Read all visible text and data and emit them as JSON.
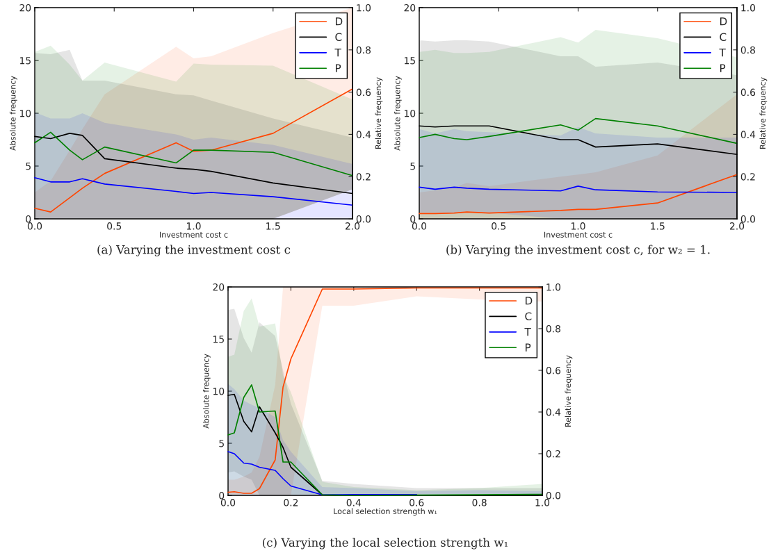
{
  "chart_data": [
    {
      "type": "line",
      "title": "(a) Varying the investment cost c",
      "xlabel": "Investment cost c",
      "ylabel": "Absolute frequency",
      "y2label": "Relative frequency",
      "x": [
        0,
        0.1,
        0.22,
        0.3,
        0.44,
        0.89,
        1.0,
        1.11,
        1.5,
        2.0
      ],
      "xlim": [
        0,
        2
      ],
      "xticks": [
        {
          "value": 0,
          "label": "0.0"
        },
        {
          "value": 0.5,
          "label": "0.5"
        },
        {
          "value": 1,
          "label": "1.0"
        },
        {
          "value": 1.5,
          "label": "1.5"
        },
        {
          "value": 2,
          "label": "2.0"
        }
      ],
      "ylim": [
        0,
        20
      ],
      "yticks": [
        0,
        5,
        10,
        15,
        20
      ],
      "y2lim": [
        0,
        1
      ],
      "y2ticks": [
        {
          "value": 0,
          "label": "0.0"
        },
        {
          "value": 0.2,
          "label": "0.2"
        },
        {
          "value": 0.4,
          "label": "0.4"
        },
        {
          "value": 0.6,
          "label": "0.6"
        },
        {
          "value": 0.8,
          "label": "0.8"
        },
        {
          "value": 1,
          "label": "1.0"
        }
      ],
      "legend": "top right",
      "grid": false,
      "series": [
        {
          "name": "D",
          "color": "#ff4500",
          "values": [
            1.0,
            0.65,
            2.0,
            2.9,
            4.3,
            7.2,
            6.4,
            6.5,
            8.1,
            12.3
          ],
          "lower": [
            0,
            0,
            0,
            0,
            0,
            0,
            0,
            0,
            0,
            2.8
          ],
          "upper": [
            2.5,
            3.6,
            6.5,
            8.5,
            11.8,
            16.3,
            15.2,
            15.4,
            17.6,
            20
          ]
        },
        {
          "name": "C",
          "color": "#000000",
          "values": [
            7.8,
            7.6,
            8.1,
            7.9,
            5.7,
            4.8,
            4.7,
            4.5,
            3.4,
            2.4
          ],
          "lower": [
            0,
            0,
            0,
            0,
            0,
            0,
            0,
            0,
            0,
            2.8
          ],
          "upper": [
            15.7,
            15.6,
            16.0,
            13.1,
            13.1,
            11.8,
            11.7,
            11.2,
            9.5,
            7.7
          ]
        },
        {
          "name": "T",
          "color": "#0000ff",
          "values": [
            3.9,
            3.5,
            3.5,
            3.8,
            3.3,
            2.6,
            2.4,
            2.5,
            2.1,
            1.3
          ],
          "lower": [
            0,
            0,
            0,
            0,
            0,
            0,
            0,
            0,
            0,
            0
          ],
          "upper": [
            10.1,
            9.5,
            9.5,
            10.0,
            9.1,
            8.0,
            7.5,
            7.7,
            7.0,
            5.2
          ]
        },
        {
          "name": "P",
          "color": "#008000",
          "values": [
            7.2,
            8.2,
            6.5,
            5.6,
            6.8,
            5.3,
            6.5,
            6.5,
            6.3,
            4.1
          ],
          "lower": [
            0,
            0,
            0,
            0,
            0,
            0,
            0,
            0,
            0,
            2.8
          ],
          "upper": [
            15.8,
            16.4,
            14.6,
            13.1,
            14.8,
            13.0,
            14.7,
            14.6,
            14.5,
            11.3
          ]
        }
      ]
    },
    {
      "type": "line",
      "title": "(b) Varying the investment cost c, for w₂ = 1.",
      "xlabel": "Investment cost c",
      "ylabel": "Absolute frequency",
      "y2label": "Relative frequency",
      "x": [
        0,
        0.1,
        0.22,
        0.3,
        0.44,
        0.89,
        1.0,
        1.11,
        1.5,
        2.0
      ],
      "xlim": [
        0,
        2
      ],
      "xticks": [
        {
          "value": 0,
          "label": "0.0"
        },
        {
          "value": 0.5,
          "label": "0.5"
        },
        {
          "value": 1,
          "label": "1.0"
        },
        {
          "value": 1.5,
          "label": "1.5"
        },
        {
          "value": 2,
          "label": "2.0"
        }
      ],
      "ylim": [
        0,
        20
      ],
      "yticks": [
        0,
        5,
        10,
        15,
        20
      ],
      "y2lim": [
        0,
        1
      ],
      "y2ticks": [
        {
          "value": 0,
          "label": "0.0"
        },
        {
          "value": 0.2,
          "label": "0.2"
        },
        {
          "value": 0.4,
          "label": "0.4"
        },
        {
          "value": 0.6,
          "label": "0.6"
        },
        {
          "value": 0.8,
          "label": "0.8"
        },
        {
          "value": 1,
          "label": "1.0"
        }
      ],
      "legend": "top right",
      "grid": false,
      "series": [
        {
          "name": "D",
          "color": "#ff4500",
          "values": [
            0.5,
            0.5,
            0.55,
            0.65,
            0.55,
            0.8,
            0.9,
            0.9,
            1.5,
            4.2
          ],
          "lower": [
            0,
            0,
            0,
            0,
            0,
            0,
            0,
            0,
            0,
            0
          ],
          "upper": [
            2.5,
            2.7,
            3.0,
            3.4,
            3.1,
            4.0,
            4.2,
            4.4,
            6.0,
            11.8
          ]
        },
        {
          "name": "C",
          "color": "#000000",
          "values": [
            8.8,
            8.7,
            8.8,
            8.8,
            8.8,
            7.5,
            7.5,
            6.8,
            7.1,
            6.1
          ],
          "lower": [
            0,
            0,
            0,
            0,
            0,
            0,
            0,
            0,
            0,
            0
          ],
          "upper": [
            16.9,
            16.8,
            16.9,
            16.9,
            16.8,
            15.4,
            15.4,
            14.4,
            14.8,
            13.6
          ]
        },
        {
          "name": "T",
          "color": "#0000ff",
          "values": [
            3.0,
            2.8,
            3.0,
            2.9,
            2.8,
            2.65,
            3.1,
            2.75,
            2.55,
            2.5
          ],
          "lower": [
            0.6,
            0.6,
            0.6,
            0.7,
            0.6,
            0,
            0,
            0,
            0,
            0
          ],
          "upper": [
            8.5,
            8.1,
            8.5,
            8.3,
            8.2,
            7.9,
            8.7,
            8.1,
            7.7,
            7.7
          ]
        },
        {
          "name": "P",
          "color": "#008000",
          "values": [
            7.7,
            8.0,
            7.6,
            7.5,
            7.8,
            8.9,
            8.4,
            9.5,
            8.8,
            7.15
          ],
          "lower": [
            0,
            0,
            0,
            0,
            0,
            0,
            0,
            0,
            0,
            0
          ],
          "upper": [
            15.8,
            16.0,
            15.7,
            15.7,
            15.8,
            17.2,
            16.7,
            17.9,
            17.1,
            15.3
          ]
        }
      ]
    },
    {
      "type": "line",
      "title": "(c) Varying the local selection strength w₁",
      "xlabel": "Local selection strength w₁",
      "ylabel": "Absolute frequency",
      "y2label": "Relative frequency",
      "x": [
        0,
        0.02,
        0.05,
        0.075,
        0.1,
        0.15,
        0.175,
        0.2,
        0.3,
        0.4,
        0.6,
        0.8,
        1.0
      ],
      "xlim": [
        0,
        1
      ],
      "xticks": [
        {
          "value": 0,
          "label": "0.0"
        },
        {
          "value": 0.2,
          "label": "0.2"
        },
        {
          "value": 0.4,
          "label": "0.4"
        },
        {
          "value": 0.6,
          "label": "0.6"
        },
        {
          "value": 0.8,
          "label": "0.8"
        },
        {
          "value": 1,
          "label": "1.0"
        }
      ],
      "ylim": [
        0,
        20
      ],
      "yticks": [
        0,
        5,
        10,
        15,
        20
      ],
      "y2lim": [
        0,
        1
      ],
      "y2ticks": [
        {
          "value": 0,
          "label": "0.0"
        },
        {
          "value": 0.2,
          "label": "0.2"
        },
        {
          "value": 0.4,
          "label": "0.4"
        },
        {
          "value": 0.6,
          "label": "0.6"
        },
        {
          "value": 0.8,
          "label": "0.8"
        },
        {
          "value": 1,
          "label": "1.0"
        }
      ],
      "legend": "top right",
      "grid": false,
      "series": [
        {
          "name": "D",
          "color": "#ff4500",
          "values": [
            0.3,
            0.35,
            0.2,
            0.2,
            0.65,
            3.4,
            10.4,
            13.1,
            19.8,
            19.8,
            19.9,
            19.9,
            19.9
          ],
          "lower": [
            0,
            0,
            0,
            0,
            0,
            0,
            0,
            0,
            18.2,
            18.2,
            19.1,
            18.8,
            18.6
          ],
          "upper": [
            1.5,
            1.5,
            1.8,
            2.2,
            3.7,
            10.6,
            20,
            20,
            20,
            20,
            20,
            20,
            20
          ]
        },
        {
          "name": "C",
          "color": "#000000",
          "values": [
            9.6,
            9.7,
            7.1,
            6.1,
            8.5,
            6.0,
            4.6,
            2.7,
            0.05,
            0,
            0,
            0,
            0
          ],
          "lower": [
            2.2,
            2.3,
            1.8,
            1.5,
            0,
            0,
            0,
            0,
            0,
            0,
            0,
            0,
            0
          ],
          "upper": [
            17.8,
            17.9,
            15.1,
            13.7,
            16.6,
            15.3,
            12.0,
            8.8,
            1.4,
            1.1,
            0.7,
            0.7,
            0.7
          ]
        },
        {
          "name": "T",
          "color": "#0000ff",
          "values": [
            4.2,
            4.0,
            3.1,
            3.0,
            2.7,
            2.4,
            1.6,
            0.9,
            0.05,
            0.08,
            0.08,
            null,
            null
          ],
          "lower": [
            0,
            0,
            0,
            0,
            0,
            0,
            0,
            0,
            0,
            0,
            0,
            0,
            0
          ],
          "upper": [
            10.7,
            10.2,
            9.1,
            8.7,
            8.4,
            7.5,
            5.3,
            4.2,
            0.8,
            0.7,
            0.4,
            0.5,
            0.4
          ]
        },
        {
          "name": "P",
          "color": "#008000",
          "values": [
            5.8,
            6.0,
            9.4,
            10.6,
            8.0,
            8.1,
            3.2,
            3.2,
            0.05,
            0,
            0.02,
            0.06,
            0.1
          ],
          "lower": [
            0,
            0,
            0,
            0,
            0,
            0,
            0,
            0,
            0,
            0,
            0,
            0,
            0
          ],
          "upper": [
            13.3,
            13.5,
            17.7,
            18.9,
            16.2,
            16.5,
            11.5,
            9.9,
            1.3,
            0.8,
            0.5,
            0.7,
            1.1
          ]
        }
      ]
    }
  ]
}
